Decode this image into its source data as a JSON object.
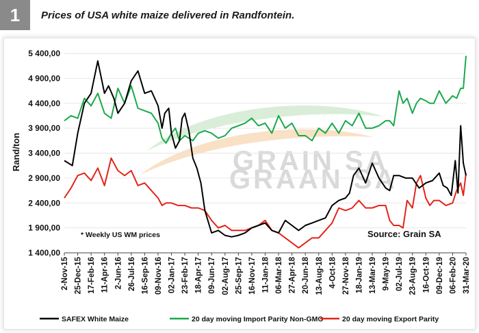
{
  "figure": {
    "number": "1",
    "title": "Prices of USA white maize delivered in Randfontein."
  },
  "chart_data": {
    "type": "line",
    "ylabel": "Rand/ton",
    "ylim": [
      1400,
      5400
    ],
    "yticks": [
      "5 400,00",
      "4 900,00",
      "4 400,00",
      "3 900,00",
      "3 400,00",
      "2 900,00",
      "2 400,00",
      "1 900,00",
      "1 400,00"
    ],
    "x_tick_labels": [
      "2-Nov-15",
      "25-Dec-15",
      "17-Feb-16",
      "11-Apr-16",
      "2-Jun-16",
      "26-Jul-16",
      "16-Sep-16",
      "09-Nov-16",
      "02-Jan-17",
      "23-Feb-17",
      "18-Apr-17",
      "09-Jun-17",
      "02-Aug-17",
      "25-Sep-17",
      "16-Nov-17",
      "11-Jan-18",
      "06-Mar-18",
      "27-Apr-18",
      "20-Jun-18",
      "13-Aug-18",
      "4-Oct-18",
      "27-Nov-18",
      "18-Jan-19",
      "13-Mar-19",
      "9-May-19",
      "02-Jul-19",
      "23-Aug-19",
      "16-Oct-19",
      "09-Dec-19",
      "06-Feb-20",
      "31-Mar-20"
    ],
    "note": "* Weekly US WM prices",
    "source": "Source: Grain SA",
    "watermark": [
      "GRAIN SA",
      "GRAAN SA"
    ],
    "series": [
      {
        "name": "SAFEX White Maize",
        "color": "#000000",
        "x": [
          0,
          0.6,
          1.0,
          1.5,
          2,
          2.5,
          3,
          3.3,
          3.7,
          4,
          4.5,
          5,
          5.5,
          6,
          6.5,
          7,
          7.3,
          7.5,
          7.8,
          8,
          8.3,
          8.6,
          8.8,
          9,
          9.3,
          9.6,
          9.9,
          10.2,
          10.5,
          11,
          11.5,
          12,
          12.5,
          13,
          13.5,
          14,
          14.5,
          15,
          15.5,
          16,
          16.5,
          17,
          17.5,
          18,
          18.5,
          19,
          19.5,
          20,
          20.5,
          21,
          21.3,
          21.6,
          22,
          22.5,
          23,
          23.5,
          24,
          24.3,
          24.6,
          25,
          25.5,
          26,
          26.5,
          27,
          27.5,
          28,
          28.3,
          28.6,
          28.9,
          29.2,
          29.4,
          29.6,
          29.8,
          30
        ],
        "values": [
          3250,
          3150,
          3800,
          4400,
          4600,
          5250,
          4600,
          4750,
          4500,
          4200,
          4400,
          4850,
          5050,
          4600,
          4650,
          4350,
          3900,
          4200,
          4300,
          3800,
          3500,
          3650,
          4100,
          4200,
          3850,
          3300,
          3100,
          2800,
          2250,
          1800,
          1850,
          1750,
          1720,
          1750,
          1800,
          1900,
          1950,
          2000,
          1850,
          1800,
          2050,
          1950,
          1850,
          1950,
          2000,
          2050,
          2100,
          2350,
          2450,
          2500,
          2600,
          2950,
          3100,
          2800,
          3200,
          2900,
          2700,
          2650,
          2950,
          2950,
          2900,
          2900,
          2700,
          2800,
          2850,
          3000,
          2750,
          2700,
          2550,
          3250,
          2600,
          3950,
          3200,
          2950
        ]
      },
      {
        "name": "20 day moving Import Parity Non-GMO",
        "color": "#1aa84b",
        "x": [
          0,
          0.5,
          1,
          1.5,
          2,
          2.5,
          3,
          3.5,
          4,
          4.5,
          5,
          5.5,
          6,
          6.5,
          7,
          7.3,
          7.6,
          8,
          8.3,
          8.6,
          9,
          9.3,
          9.6,
          10,
          10.5,
          11,
          11.5,
          12,
          12.5,
          13,
          13.5,
          14,
          14.5,
          15,
          15.5,
          16,
          16.5,
          17,
          17.5,
          18,
          18.5,
          19,
          19.5,
          20,
          20.5,
          21,
          21.5,
          22,
          22.5,
          23,
          23.5,
          24,
          24.3,
          24.6,
          25,
          25.3,
          25.6,
          26,
          26.3,
          26.6,
          27,
          27.3,
          27.6,
          28,
          28.5,
          29,
          29.3,
          29.6,
          29.8,
          30
        ],
        "values": [
          4050,
          4150,
          4100,
          4500,
          4350,
          4600,
          4200,
          4100,
          4700,
          4400,
          4750,
          4300,
          4250,
          4200,
          4000,
          3700,
          3600,
          3800,
          3900,
          3650,
          3750,
          3700,
          3650,
          3800,
          3850,
          3800,
          3700,
          3750,
          3900,
          3950,
          4000,
          4100,
          3950,
          4000,
          3800,
          4150,
          3900,
          4000,
          3750,
          3750,
          3650,
          3900,
          3800,
          4000,
          3800,
          4050,
          3950,
          4200,
          3900,
          3900,
          3950,
          4050,
          4050,
          3950,
          4650,
          4400,
          4500,
          4200,
          4400,
          4500,
          4450,
          4400,
          4400,
          4650,
          4400,
          4550,
          4500,
          4700,
          4700,
          5350
        ]
      },
      {
        "name": "20 day moving Export Parity",
        "color": "#e3231a",
        "x": [
          0,
          0.5,
          1,
          1.5,
          2,
          2.5,
          3,
          3.5,
          4,
          4.5,
          5,
          5.5,
          6,
          6.5,
          7,
          7.3,
          7.6,
          8,
          8.5,
          9,
          9.5,
          10,
          10.5,
          11,
          11.5,
          12,
          12.5,
          13,
          13.5,
          14,
          14.5,
          15,
          15.5,
          16,
          16.5,
          17,
          17.5,
          18,
          18.5,
          19,
          19.5,
          20,
          20.5,
          21,
          21.5,
          22,
          22.5,
          23,
          23.5,
          24,
          24.3,
          24.6,
          25,
          25.3,
          25.6,
          26,
          26.3,
          26.6,
          27,
          27.3,
          27.6,
          28,
          28.5,
          29,
          29.3,
          29.6,
          29.8,
          30
        ],
        "values": [
          2500,
          2700,
          2950,
          3000,
          2850,
          3100,
          2750,
          3300,
          3050,
          2950,
          3050,
          2750,
          2800,
          2650,
          2500,
          2350,
          2400,
          2400,
          2350,
          2350,
          2300,
          2300,
          2250,
          2050,
          1900,
          1950,
          1850,
          1850,
          1850,
          1900,
          1950,
          2050,
          1850,
          1800,
          1700,
          1600,
          1500,
          1600,
          1700,
          1700,
          1850,
          2000,
          2300,
          2250,
          2300,
          2450,
          2300,
          2300,
          2350,
          2350,
          2050,
          1950,
          1950,
          1900,
          2450,
          2300,
          2800,
          2950,
          2500,
          2350,
          2450,
          2450,
          2350,
          2400,
          2650,
          2800,
          2550,
          3000
        ]
      }
    ],
    "legend": [
      {
        "label": "SAFEX White Maize",
        "color": "#000000"
      },
      {
        "label": "20 day moving Import Parity Non-GMO",
        "color": "#1aa84b"
      },
      {
        "label": "20 day moving Export Parity",
        "color": "#e3231a"
      }
    ]
  }
}
